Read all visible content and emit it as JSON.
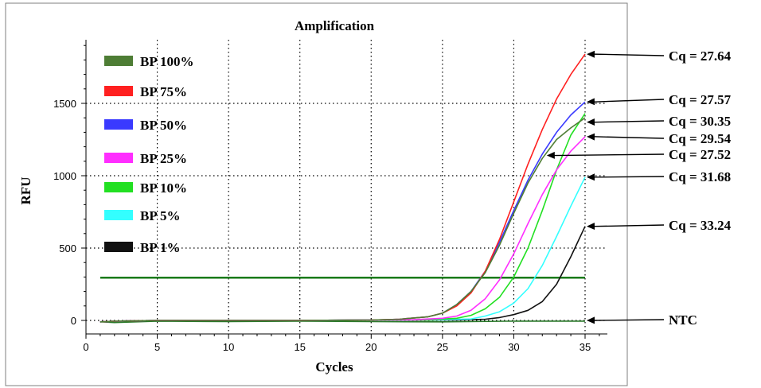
{
  "chart_data": {
    "type": "line",
    "title": "Amplification",
    "xlabel": "Cycles",
    "ylabel": "RFU",
    "xlim": [
      0,
      37
    ],
    "ylim": [
      -70,
      1950
    ],
    "xticks": [
      0,
      5,
      10,
      15,
      20,
      25,
      30,
      35
    ],
    "yticks": [
      0,
      500,
      1000,
      1500
    ],
    "grid": true,
    "legend_position": "top-left",
    "threshold": {
      "value": 295,
      "color": "#1a7a1a"
    },
    "series": [
      {
        "name": "BP 100%",
        "color": "#4e7d35",
        "values": [
          [
            1,
            -10
          ],
          [
            2,
            -5
          ],
          [
            5,
            0
          ],
          [
            10,
            0
          ],
          [
            15,
            0
          ],
          [
            20,
            3
          ],
          [
            22,
            8
          ],
          [
            24,
            25
          ],
          [
            25,
            50
          ],
          [
            26,
            110
          ],
          [
            27,
            200
          ],
          [
            28,
            330
          ],
          [
            29,
            520
          ],
          [
            30,
            740
          ],
          [
            31,
            950
          ],
          [
            32,
            1120
          ],
          [
            33,
            1250
          ],
          [
            34,
            1330
          ],
          [
            35,
            1400
          ]
        ]
      },
      {
        "name": "BP 75%",
        "color": "#ff2020",
        "values": [
          [
            1,
            -10
          ],
          [
            2,
            -5
          ],
          [
            5,
            0
          ],
          [
            10,
            0
          ],
          [
            15,
            0
          ],
          [
            20,
            3
          ],
          [
            22,
            8
          ],
          [
            24,
            25
          ],
          [
            25,
            50
          ],
          [
            26,
            100
          ],
          [
            27,
            190
          ],
          [
            28,
            340
          ],
          [
            29,
            560
          ],
          [
            30,
            820
          ],
          [
            31,
            1080
          ],
          [
            32,
            1320
          ],
          [
            33,
            1530
          ],
          [
            34,
            1700
          ],
          [
            35,
            1840
          ]
        ]
      },
      {
        "name": "BP 50%",
        "color": "#3a3aff",
        "values": [
          [
            1,
            -10
          ],
          [
            2,
            -5
          ],
          [
            5,
            0
          ],
          [
            10,
            0
          ],
          [
            15,
            0
          ],
          [
            20,
            3
          ],
          [
            22,
            8
          ],
          [
            24,
            25
          ],
          [
            25,
            50
          ],
          [
            26,
            110
          ],
          [
            27,
            200
          ],
          [
            28,
            340
          ],
          [
            29,
            540
          ],
          [
            30,
            760
          ],
          [
            31,
            970
          ],
          [
            32,
            1150
          ],
          [
            33,
            1300
          ],
          [
            34,
            1420
          ],
          [
            35,
            1510
          ]
        ]
      },
      {
        "name": "BP 25%",
        "color": "#ff2eff",
        "values": [
          [
            1,
            -10
          ],
          [
            2,
            -5
          ],
          [
            5,
            0
          ],
          [
            10,
            0
          ],
          [
            15,
            0
          ],
          [
            20,
            2
          ],
          [
            23,
            5
          ],
          [
            25,
            15
          ],
          [
            26,
            30
          ],
          [
            27,
            70
          ],
          [
            28,
            150
          ],
          [
            29,
            280
          ],
          [
            30,
            460
          ],
          [
            31,
            670
          ],
          [
            32,
            870
          ],
          [
            33,
            1040
          ],
          [
            34,
            1170
          ],
          [
            35,
            1270
          ]
        ]
      },
      {
        "name": "BP 10%",
        "color": "#22e022",
        "values": [
          [
            1,
            -10
          ],
          [
            2,
            -5
          ],
          [
            5,
            0
          ],
          [
            10,
            0
          ],
          [
            15,
            0
          ],
          [
            20,
            2
          ],
          [
            24,
            5
          ],
          [
            26,
            15
          ],
          [
            27,
            35
          ],
          [
            28,
            80
          ],
          [
            29,
            160
          ],
          [
            30,
            300
          ],
          [
            31,
            500
          ],
          [
            32,
            760
          ],
          [
            33,
            1040
          ],
          [
            34,
            1280
          ],
          [
            35,
            1430
          ]
        ]
      },
      {
        "name": "BP 5%",
        "color": "#33ffff",
        "values": [
          [
            1,
            -10
          ],
          [
            2,
            -5
          ],
          [
            5,
            0
          ],
          [
            10,
            0
          ],
          [
            15,
            0
          ],
          [
            20,
            2
          ],
          [
            25,
            5
          ],
          [
            27,
            10
          ],
          [
            28,
            30
          ],
          [
            29,
            60
          ],
          [
            30,
            120
          ],
          [
            31,
            220
          ],
          [
            32,
            380
          ],
          [
            33,
            580
          ],
          [
            34,
            790
          ],
          [
            35,
            990
          ]
        ]
      },
      {
        "name": "BP 1%",
        "color": "#111111",
        "values": [
          [
            1,
            -10
          ],
          [
            2,
            -5
          ],
          [
            5,
            0
          ],
          [
            10,
            0
          ],
          [
            15,
            0
          ],
          [
            20,
            2
          ],
          [
            26,
            3
          ],
          [
            28,
            8
          ],
          [
            29,
            20
          ],
          [
            30,
            40
          ],
          [
            31,
            70
          ],
          [
            32,
            130
          ],
          [
            33,
            250
          ],
          [
            34,
            440
          ],
          [
            35,
            650
          ]
        ]
      },
      {
        "name": "",
        "color": "#2a7a2a",
        "values": [
          [
            1,
            -10
          ],
          [
            2,
            -15
          ],
          [
            5,
            -5
          ],
          [
            10,
            -8
          ],
          [
            15,
            -5
          ],
          [
            20,
            -8
          ],
          [
            25,
            -10
          ],
          [
            30,
            -5
          ],
          [
            35,
            -5
          ]
        ]
      }
    ],
    "annotations": [
      {
        "label": "Cq = 27.64",
        "target": [
          35,
          1840
        ]
      },
      {
        "label": "Cq = 27.57",
        "target": [
          35,
          1510
        ]
      },
      {
        "label": "Cq = 30.35",
        "target": [
          35,
          1370
        ]
      },
      {
        "label": "Cq = 29.54",
        "target": [
          35,
          1270
        ]
      },
      {
        "label": "Cq = 27.52",
        "target": [
          32.2,
          1140
        ]
      },
      {
        "label": "Cq = 31.68",
        "target": [
          35,
          990
        ]
      },
      {
        "label": "Cq = 33.24",
        "target": [
          35,
          650
        ]
      },
      {
        "label": "NTC",
        "target": [
          35,
          0
        ]
      }
    ]
  }
}
